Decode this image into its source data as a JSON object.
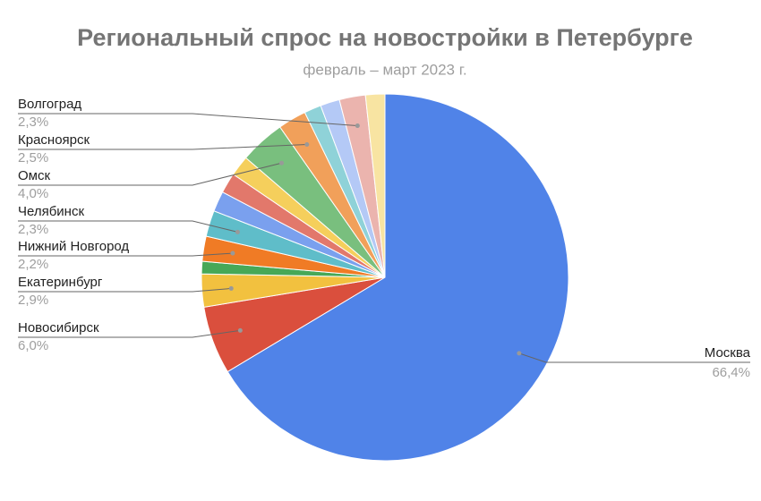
{
  "chart_data": {
    "type": "pie",
    "title": "Региональный спрос на новостройки в Петербурге",
    "subtitle": "февраль – март 2023 г.",
    "categories": [
      "Москва",
      "Новосибирск",
      "Екатеринбург",
      null,
      "Нижний Новгород",
      "Челябинск",
      null,
      null,
      null,
      "Омск",
      "Красноярск",
      null,
      null,
      "Волгоград",
      null
    ],
    "values": [
      66.4,
      6.0,
      2.9,
      1.1,
      2.2,
      2.3,
      1.8,
      1.8,
      1.8,
      4.0,
      2.5,
      1.5,
      1.7,
      2.3,
      1.7
    ],
    "value_labels": [
      "66,4%",
      "6,0%",
      "2,9%",
      null,
      "2,2%",
      "2,3%",
      null,
      null,
      null,
      "4,0%",
      "2,5%",
      null,
      null,
      "2,3%",
      null
    ],
    "colors": [
      "#5083e8",
      "#da4f3d",
      "#f2c13f",
      "#47a857",
      "#f07b25",
      "#5fbdc9",
      "#7aa0ee",
      "#e2786b",
      "#f5cf5c",
      "#79bf7e",
      "#f1a05a",
      "#8fd2d8",
      "#b4c9f6",
      "#ebb4ae",
      "#f8e4a2"
    ]
  }
}
